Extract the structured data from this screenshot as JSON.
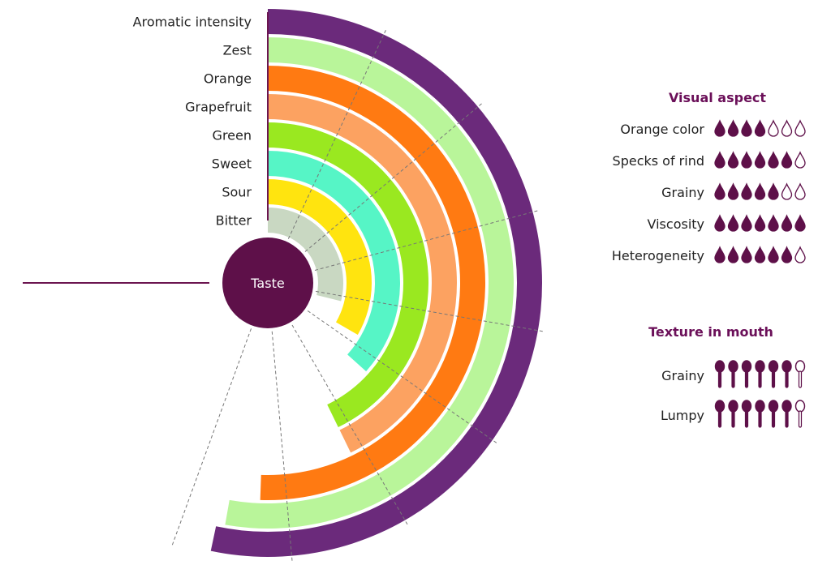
{
  "chart_data": {
    "type": "radial-bar",
    "center_label": "Taste",
    "value_range": [
      0,
      10
    ],
    "series": [
      {
        "name": "Aromatic intensity",
        "value": 9.6,
        "color": "#6b2a7b"
      },
      {
        "name": "Zest",
        "value": 9.5,
        "color": "#b9f59a"
      },
      {
        "name": "Orange",
        "value": 9.1,
        "color": "#ff7a12"
      },
      {
        "name": "Grapefruit",
        "value": 7.7,
        "color": "#fca261"
      },
      {
        "name": "Green",
        "value": 7.7,
        "color": "#9ae820"
      },
      {
        "name": "Sweet",
        "value": 6.6,
        "color": "#56f5c6"
      },
      {
        "name": "Sour",
        "value": 6.0,
        "color": "#ffe40f"
      },
      {
        "name": "Bitter",
        "value": 5.2,
        "color": "#c9d8c2"
      }
    ]
  },
  "visual_aspect": {
    "title": "Visual aspect",
    "max": 7,
    "items": [
      {
        "label": "Orange color",
        "filled": 4
      },
      {
        "label": "Specks of rind",
        "filled": 6
      },
      {
        "label": "Grainy",
        "filled": 5
      },
      {
        "label": "Viscosity",
        "filled": 7
      },
      {
        "label": "Heterogeneity",
        "filled": 6
      }
    ]
  },
  "texture": {
    "title": "Texture in mouth",
    "max": 7,
    "items": [
      {
        "label": "Grainy",
        "filled": 6
      },
      {
        "label": "Lumpy",
        "filled": 6
      }
    ]
  },
  "colors": {
    "accent": "#6b1550",
    "center_fill": "#5e1049",
    "title_color": "#6b1059",
    "icon_color": "#5e1049",
    "grid_line": "#777777"
  }
}
